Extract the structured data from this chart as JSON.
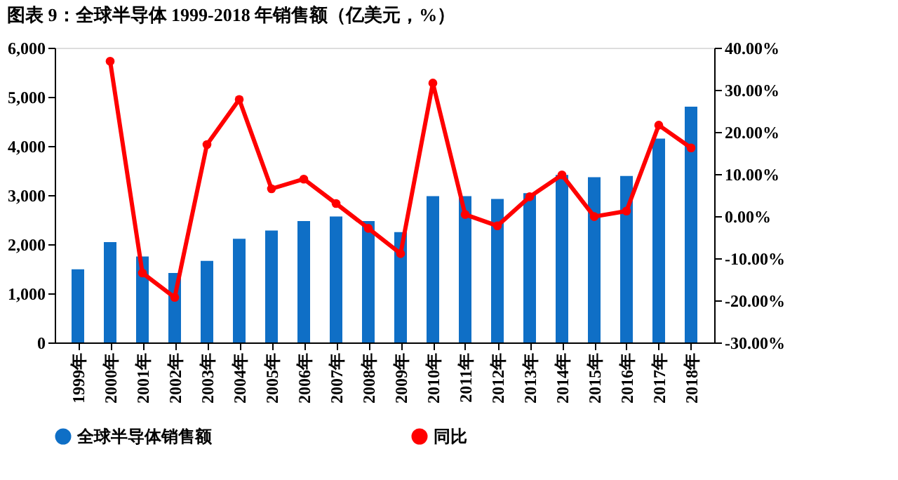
{
  "chart_data": {
    "type": "bar",
    "title": "图表 9：全球半导体 1999-2018 年销售额（亿美元，%）",
    "categories": [
      "1999年",
      "2000年",
      "2001年",
      "2002年",
      "2003年",
      "2004年",
      "2005年",
      "2006年",
      "2007年",
      "2008年",
      "2009年",
      "2010年",
      "2011年",
      "2012年",
      "2013年",
      "2014年",
      "2015年",
      "2016年",
      "2017年",
      "2018年"
    ],
    "series": [
      {
        "name": "全球半导体销售额",
        "color": "#0f6fc6",
        "values": [
          1490,
          2044,
          1750,
          1415,
          1660,
          2110,
          2280,
          2470,
          2565,
          2470,
          2245,
          2980,
          2980,
          2920,
          3040,
          3410,
          3365,
          3390,
          4150,
          4800
        ]
      },
      {
        "name": "同比",
        "type": "line",
        "axis": "y2",
        "color": "#ff0000",
        "marker": "circle",
        "values": [
          null,
          36.8,
          -13.5,
          -19.3,
          17.0,
          27.7,
          6.5,
          8.8,
          3.0,
          -2.9,
          -8.9,
          31.6,
          0.4,
          -2.3,
          4.6,
          9.8,
          -0.1,
          1.2,
          21.6,
          16.2
        ]
      }
    ],
    "ylim": [
      0,
      6000
    ],
    "yticks": [
      0,
      {
        "value": 1000,
        "label": "1,000"
      },
      {
        "value": 2000,
        "label": "2,000"
      },
      {
        "value": 3000,
        "label": "3,000"
      },
      {
        "value": 4000,
        "label": "4,000"
      },
      {
        "value": 5000,
        "label": "5,000"
      },
      {
        "value": 6000,
        "label": "6,000"
      }
    ],
    "y2lim": [
      -30,
      40
    ],
    "y2ticks": [
      {
        "value": -30,
        "label": "-30.00%"
      },
      {
        "value": -20,
        "label": "-20.00%"
      },
      {
        "value": -10,
        "label": "-10.00%"
      },
      {
        "value": 0,
        "label": "0.00%"
      },
      {
        "value": 10,
        "label": "10.00%"
      },
      {
        "value": 20,
        "label": "20.00%"
      },
      {
        "value": 30,
        "label": "30.00%"
      },
      {
        "value": 40,
        "label": "40.00%"
      }
    ],
    "grid": false,
    "legend": "bottom"
  }
}
